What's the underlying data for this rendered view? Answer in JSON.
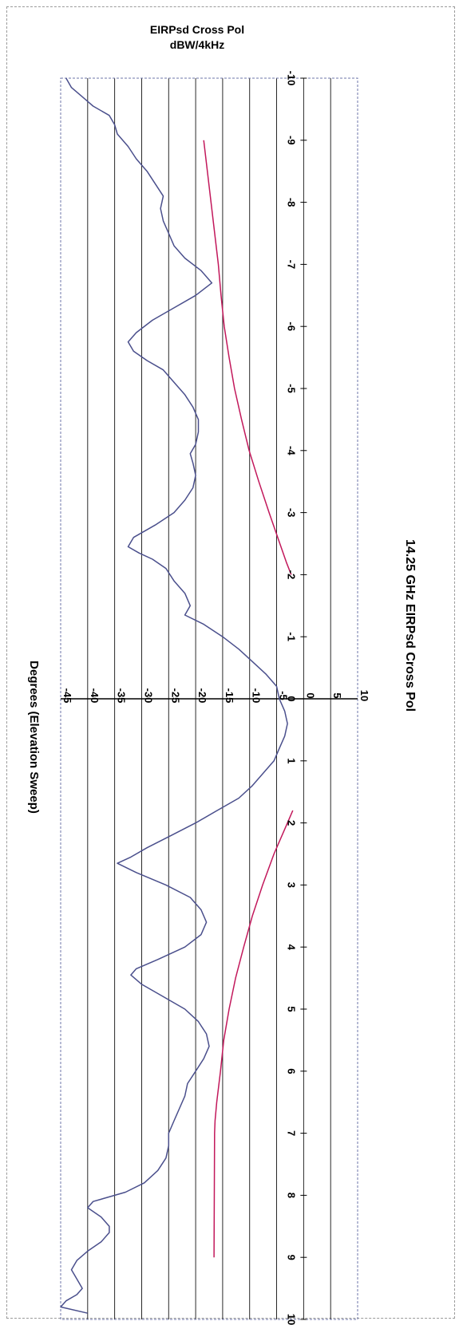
{
  "chart_data": {
    "type": "line",
    "title": "14.25 GHz EIRPsd Cross Pol",
    "ylabel_lines": [
      "EIRPsd Cross Pol",
      "dBW/4kHz"
    ],
    "xlabel": "Degrees (Elevation Sweep)",
    "xlim": [
      -10,
      10
    ],
    "ylim": [
      -45,
      10
    ],
    "xticks": [
      -10,
      -9,
      -8,
      -7,
      -6,
      -5,
      -4,
      -3,
      -2,
      -1,
      0,
      1,
      2,
      3,
      4,
      5,
      6,
      7,
      8,
      9,
      10
    ],
    "yticks": [
      -45,
      -40,
      -35,
      -30,
      -25,
      -20,
      -15,
      -10,
      -5,
      0,
      5,
      10
    ],
    "grid": true,
    "series": [
      {
        "color": "#4a4f8c",
        "x": [
          -10.0,
          -9.85,
          -9.7,
          -9.55,
          -9.4,
          -9.25,
          -9.1,
          -8.9,
          -8.7,
          -8.5,
          -8.3,
          -8.1,
          -7.9,
          -7.7,
          -7.5,
          -7.3,
          -7.1,
          -6.9,
          -6.7,
          -6.5,
          -6.3,
          -6.1,
          -5.9,
          -5.75,
          -5.6,
          -5.45,
          -5.3,
          -5.1,
          -4.9,
          -4.7,
          -4.5,
          -4.3,
          -4.1,
          -3.95,
          -3.8,
          -3.6,
          -3.4,
          -3.2,
          -3.0,
          -2.8,
          -2.6,
          -2.45,
          -2.35,
          -2.25,
          -2.1,
          -1.9,
          -1.7,
          -1.5,
          -1.35,
          -1.2,
          -1.0,
          -0.8,
          -0.6,
          -0.4,
          -0.2,
          0.0,
          0.2,
          0.4,
          0.6,
          0.8,
          1.0,
          1.2,
          1.4,
          1.6,
          1.8,
          2.0,
          2.2,
          2.4,
          2.55,
          2.65,
          2.8,
          3.0,
          3.2,
          3.4,
          3.6,
          3.8,
          4.0,
          4.2,
          4.35,
          4.45,
          4.6,
          4.8,
          5.0,
          5.2,
          5.4,
          5.6,
          5.8,
          6.0,
          6.2,
          6.4,
          6.6,
          6.8,
          7.0,
          7.2,
          7.4,
          7.6,
          7.8,
          7.95,
          8.1,
          8.2,
          8.35,
          8.5,
          8.6,
          8.75,
          8.9,
          9.05,
          9.2,
          9.35,
          9.5,
          9.6,
          9.7,
          9.8,
          9.9
        ],
        "y": [
          -44.0,
          -43.0,
          -41.0,
          -39.0,
          -36.0,
          -35.0,
          -34.5,
          -32.5,
          -31.0,
          -29.0,
          -27.5,
          -26.0,
          -26.5,
          -26.0,
          -25.0,
          -24.0,
          -22.0,
          -19.0,
          -17.0,
          -20.0,
          -24.0,
          -28.0,
          -31.0,
          -32.5,
          -31.5,
          -29.0,
          -26.0,
          -24.0,
          -22.0,
          -20.5,
          -19.5,
          -19.5,
          -20.0,
          -21.0,
          -20.5,
          -20.0,
          -20.5,
          -22.0,
          -24.0,
          -27.5,
          -31.5,
          -32.5,
          -30.5,
          -28.0,
          -25.5,
          -24.0,
          -22.0,
          -21.0,
          -22.0,
          -18.5,
          -15.0,
          -12.0,
          -9.5,
          -7.0,
          -5.0,
          -4.5,
          -3.5,
          -3.0,
          -3.5,
          -4.5,
          -5.5,
          -7.5,
          -9.5,
          -12.0,
          -16.0,
          -20.0,
          -24.5,
          -29.0,
          -32.0,
          -34.5,
          -31.0,
          -25.5,
          -21.0,
          -19.0,
          -18.0,
          -19.0,
          -22.0,
          -27.0,
          -31.0,
          -32.0,
          -30.0,
          -26.0,
          -22.0,
          -19.5,
          -18.0,
          -17.5,
          -18.5,
          -20.0,
          -21.5,
          -22.0,
          -23.0,
          -24.0,
          -25.0,
          -25.0,
          -25.5,
          -27.0,
          -29.5,
          -33.0,
          -39.0,
          -40.0,
          -37.5,
          -36.0,
          -36.0,
          -37.5,
          -40.0,
          -42.0,
          -43.0,
          -42.0,
          -41.0,
          -42.0,
          -44.0,
          -45.0,
          -40.0
        ]
      },
      {
        "color": "#c2185b",
        "x": [
          -9.0,
          -7.0,
          -6.5,
          -6.0,
          -5.5,
          -5.0,
          -4.5,
          -4.0,
          -3.5,
          -3.0,
          -2.5,
          -2.2,
          -2.0
        ],
        "y": [
          -18.5,
          -15.8,
          -15.3,
          -14.7,
          -13.8,
          -12.8,
          -11.5,
          -10.1,
          -8.3,
          -6.4,
          -4.4,
          -3.2,
          -2.3
        ]
      },
      {
        "color": "#c2185b",
        "x": [
          1.8,
          2.0,
          2.5,
          3.0,
          3.5,
          4.0,
          4.5,
          5.0,
          5.5,
          6.0,
          6.5,
          6.8,
          7.0,
          9.0
        ],
        "y": [
          -2.0,
          -3.0,
          -5.5,
          -7.6,
          -9.5,
          -11.1,
          -12.6,
          -13.8,
          -14.8,
          -15.4,
          -16.1,
          -16.4,
          -16.5,
          -16.6
        ]
      }
    ]
  }
}
